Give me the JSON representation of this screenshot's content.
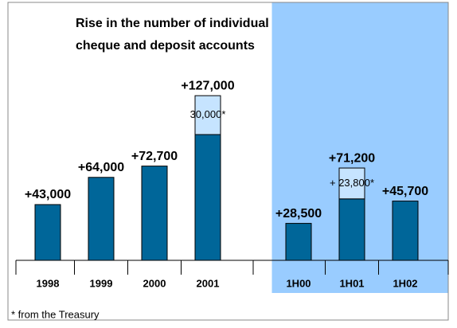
{
  "chart_data": {
    "type": "bar",
    "title_lines": [
      "Rise in the number of individual",
      "cheque and deposit accounts"
    ],
    "categories": [
      "1998",
      "1999",
      "2000",
      "2001",
      "1H00",
      "1H01",
      "1H02"
    ],
    "series": [
      {
        "color": "#006699",
        "values": [
          43000,
          64000,
          72700,
          97000,
          28500,
          47400,
          45700
        ]
      },
      {
        "color": "#c6e4ff",
        "values": [
          null,
          null,
          null,
          30000,
          null,
          23800,
          null
        ],
        "value_labels": [
          null,
          null,
          null,
          "30,000*",
          null,
          "+ 23,800*",
          null
        ]
      }
    ],
    "totals": [
      43000,
      64000,
      72700,
      127000,
      28500,
      71200,
      45700
    ],
    "total_labels": [
      "+43,000",
      "+64,000",
      "+72,700",
      "+127,000",
      "+28,500",
      "+71,200",
      "+45,700"
    ],
    "highlight_from": 4,
    "highlight_color": "#99ccff",
    "ylim": [
      0,
      140000
    ],
    "footnote": "* from the Treasury"
  }
}
